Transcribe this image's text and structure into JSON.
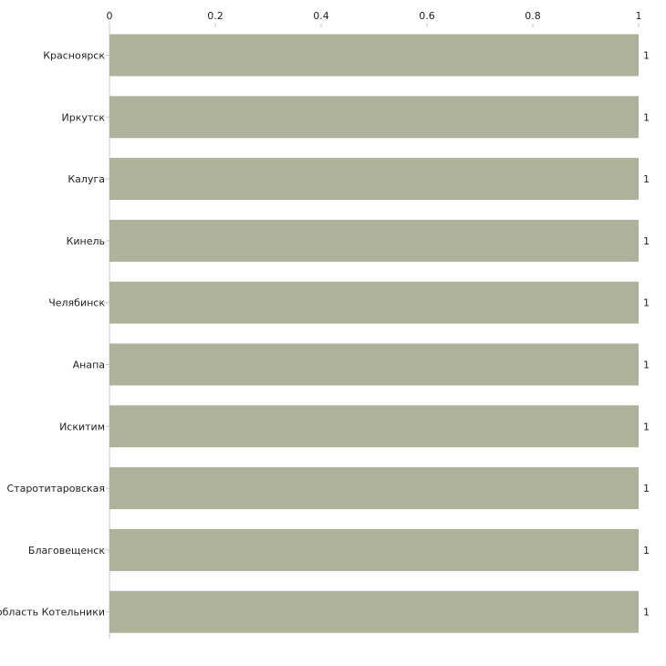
{
  "chart_data": {
    "type": "bar",
    "orientation": "horizontal",
    "title": "",
    "xlabel": "",
    "ylabel": "",
    "xlim": [
      0,
      1
    ],
    "x_ticks": [
      0,
      0.2,
      0.4,
      0.6,
      0.8,
      1
    ],
    "x_tick_labels": [
      "0",
      "0.2",
      "0.4",
      "0.6",
      "0.8",
      "1"
    ],
    "categories": [
      "Красноярск",
      "Иркутск",
      "Калуга",
      "Кинель",
      "Челябинск",
      "Анапа",
      "Искитим",
      "Старотитаровская",
      "Благовещенск",
      "Московская область Котельники"
    ],
    "values": [
      1,
      1,
      1,
      1,
      1,
      1,
      1,
      1,
      1,
      1
    ],
    "value_labels": [
      "1",
      "1",
      "1",
      "1",
      "1",
      "1",
      "1",
      "1",
      "1",
      "1"
    ],
    "bar_color": "#adb39a",
    "axis_color": "#c8c8c8",
    "grid": false
  }
}
